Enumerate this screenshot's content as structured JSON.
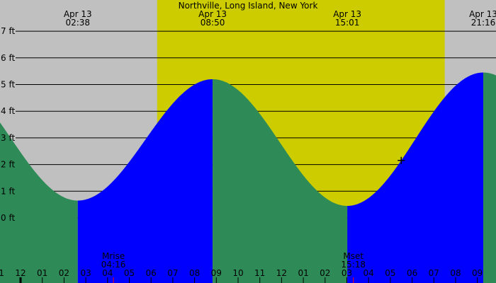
{
  "chart_data": {
    "type": "area",
    "title": "Northville, Long Island, New York",
    "colors": {
      "night": "#c0c0c0",
      "day": "#cccc00",
      "rising": "#0000ff",
      "falling": "#2e8b57",
      "moon_marker": "#ff0000"
    },
    "y_unit": "ft",
    "ylim": [
      0,
      7
    ],
    "y_ticks": [
      "0 ft",
      "1 ft",
      "2 ft",
      "3 ft",
      "4 ft",
      "5 ft",
      "6 ft",
      "7 ft"
    ],
    "x_hour_labels": [
      "11",
      "12",
      "01",
      "02",
      "03",
      "04",
      "05",
      "06",
      "07",
      "08",
      "09",
      "10",
      "11",
      "12",
      "01",
      "02",
      "03",
      "04",
      "05",
      "06",
      "07",
      "08",
      "09"
    ],
    "daylight_hours": [
      6.28,
      19.5
    ],
    "extremes": [
      {
        "date": "Apr 13",
        "time": "02:38",
        "hour": 2.63,
        "height": 0.65,
        "type": "low"
      },
      {
        "date": "Apr 13",
        "time": "08:50",
        "hour": 8.83,
        "height": 5.2,
        "type": "high"
      },
      {
        "date": "Apr 13",
        "time": "15:01",
        "hour": 15.02,
        "height": 0.45,
        "type": "low"
      },
      {
        "date": "Apr 13",
        "time": "21:16",
        "hour": 21.27,
        "height": 5.45,
        "type": "high"
      }
    ],
    "moon": [
      {
        "label": "Mrise",
        "time": "04:16",
        "hour": 4.27
      },
      {
        "label": "Mset",
        "time": "15:18",
        "hour": 15.3
      }
    ],
    "current_marker_hour": 17.5
  }
}
